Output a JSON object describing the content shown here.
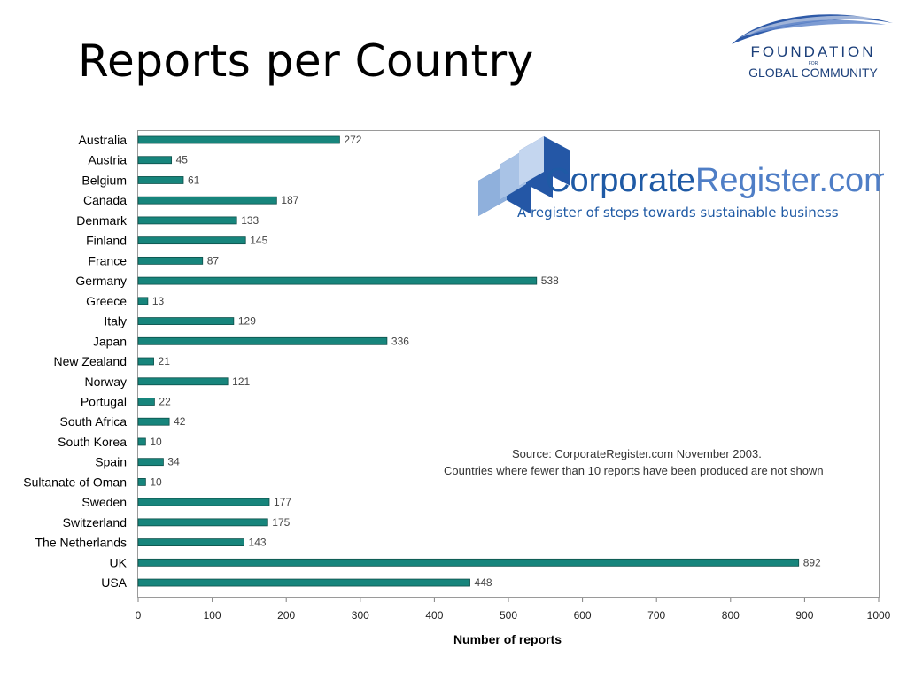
{
  "slide": {
    "title": "Reports per Country"
  },
  "logos": {
    "fgc": {
      "line1": "FOUNDATION",
      "line2": "FOR",
      "line3": "GLOBAL COMMUNITY",
      "color": "#1b3f7a",
      "swoosh_color": "#2e5aa8"
    },
    "corporate_register": {
      "name_dark": "Corporate",
      "name_light": "Register.com",
      "tagline": "A register of steps towards sustainable business",
      "color_dark": "#1f5aa5",
      "color_light": "#4f7ec6"
    }
  },
  "notes": {
    "source": "Source: CorporateRegister.com November 2003.",
    "caveat": "Countries where fewer than 10 reports have been produced are not shown"
  },
  "chart_data": {
    "type": "bar",
    "orientation": "horizontal",
    "categories": [
      "Australia",
      "Austria",
      "Belgium",
      "Canada",
      "Denmark",
      "Finland",
      "France",
      "Germany",
      "Greece",
      "Italy",
      "Japan",
      "New Zealand",
      "Norway",
      "Portugal",
      "South Africa",
      "South Korea",
      "Spain",
      "Sultanate of Oman",
      "Sweden",
      "Switzerland",
      "The Netherlands",
      "UK",
      "USA"
    ],
    "values": [
      272,
      45,
      61,
      187,
      133,
      145,
      87,
      538,
      13,
      129,
      336,
      21,
      121,
      22,
      42,
      10,
      34,
      10,
      177,
      175,
      143,
      892,
      448
    ],
    "xlabel": "Number of reports",
    "ylabel": "",
    "xlim": [
      0,
      1000
    ],
    "xticks": [
      0,
      100,
      200,
      300,
      400,
      500,
      600,
      700,
      800,
      900,
      1000
    ],
    "data_labels": true,
    "grid": false,
    "bar_color": "#17857c"
  }
}
